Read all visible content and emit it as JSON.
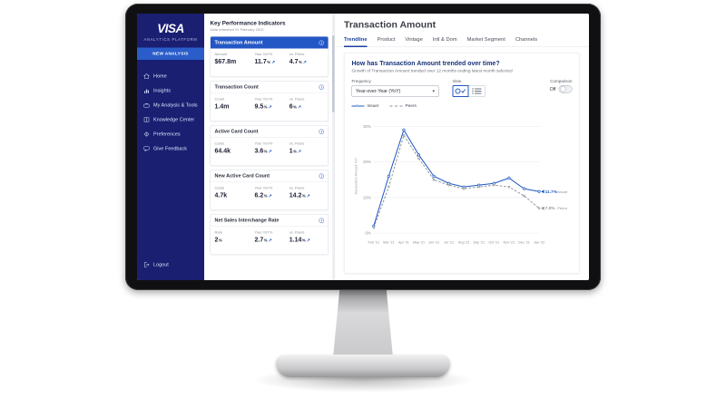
{
  "theme": {
    "brand_navy": "#1a1f71",
    "accent_blue": "#2357c5",
    "issuer_line_color": "#1f57c3",
    "peers_line_color": "#8f959e"
  },
  "sidebar": {
    "logo": "VISA",
    "platform_name": "ANALYTICS PLATFORM",
    "new_analysis_label": "NEW ANALYSIS",
    "items": [
      {
        "label": "Home",
        "icon": "home-icon"
      },
      {
        "label": "Insights",
        "icon": "bar-chart-icon"
      },
      {
        "label": "My Analysis & Tools",
        "icon": "briefcase-icon"
      },
      {
        "label": "Knowledge Center",
        "icon": "book-icon"
      },
      {
        "label": "Preferences",
        "icon": "gear-icon"
      },
      {
        "label": "Give Feedback",
        "icon": "feedback-icon"
      }
    ],
    "logout_label": "Logout"
  },
  "kpi_panel": {
    "title": "Key Performance Indicators",
    "subtitle": "Data refreshed 01 February 2022",
    "cards": [
      {
        "title": "Transaction Amount",
        "selected": true,
        "metrics": [
          {
            "label": "Amount",
            "value": "$67.8m"
          },
          {
            "label": "Your YoY%",
            "value": "11.7",
            "unit": "%",
            "trend": "up"
          },
          {
            "label": "vs. Peers",
            "value": "4.7",
            "unit": "%",
            "trend": "up"
          }
        ]
      },
      {
        "title": "Transaction Count",
        "selected": false,
        "metrics": [
          {
            "label": "Count",
            "value": "1.4m"
          },
          {
            "label": "Your YoY%",
            "value": "9.5",
            "unit": "%",
            "trend": "up"
          },
          {
            "label": "vs. Peers",
            "value": "6",
            "unit": "%",
            "trend": "up"
          }
        ]
      },
      {
        "title": "Active Card Count",
        "selected": false,
        "metrics": [
          {
            "label": "Cards",
            "value": "64.4k"
          },
          {
            "label": "Your YoY%",
            "value": "3.6",
            "unit": "%",
            "trend": "up"
          },
          {
            "label": "vs. Peers",
            "value": "1",
            "unit": "%",
            "trend": "up"
          }
        ]
      },
      {
        "title": "New Active Card Count",
        "selected": false,
        "metrics": [
          {
            "label": "Cards",
            "value": "4.7k"
          },
          {
            "label": "Your YoY%",
            "value": "6.2",
            "unit": "%",
            "trend": "up"
          },
          {
            "label": "vs. Peers",
            "value": "14.2",
            "unit": "%",
            "trend": "up"
          }
        ]
      },
      {
        "title": "Net Sales Interchange Rate",
        "selected": false,
        "metrics": [
          {
            "label": "Rate",
            "value": "2",
            "unit": "%"
          },
          {
            "label": "Your YoY%",
            "value": "2.7",
            "unit": "%",
            "trend": "up"
          },
          {
            "label": "vs. Peers",
            "value": "1.14",
            "unit": "%",
            "trend": "up"
          }
        ]
      }
    ]
  },
  "main": {
    "title": "Transaction Amount",
    "tabs": [
      {
        "label": "Trendline",
        "active": true
      },
      {
        "label": "Product",
        "active": false
      },
      {
        "label": "Vintage",
        "active": false
      },
      {
        "label": "Intl & Dom",
        "active": false
      },
      {
        "label": "Market Segment",
        "active": false
      },
      {
        "label": "Channels",
        "active": false
      }
    ],
    "question": "How has Transaction Amount trended over time?",
    "description": "Growth of Transaction Amount trended over 12 months ending latest month selected",
    "controls": {
      "frequency_label": "Frequency",
      "frequency_value": "Year-over-Year (YoY)",
      "view_label": "View",
      "comparison_label": "Comparison",
      "comparison_state": "Off"
    }
  },
  "chart_data": {
    "type": "line",
    "ylabel": "Transaction Amount YoY",
    "ylim": [
      0,
      32
    ],
    "ytick_values": [
      0,
      10,
      20,
      30
    ],
    "ytick_labels": [
      "0%",
      "10%",
      "20%",
      "30%"
    ],
    "grid": true,
    "legend_position": "top-left",
    "x": [
      "Feb '21",
      "Mar '21",
      "Apr '21",
      "May '21",
      "Jun '21",
      "Jul '21",
      "Aug '21",
      "Sep '21",
      "Oct '21",
      "Nov '21",
      "Dec '21",
      "Jan '22"
    ],
    "series": [
      {
        "name": "Issuer",
        "color": "#1f57c3",
        "dash": "solid",
        "values": [
          2,
          16,
          29,
          22,
          16,
          14,
          13,
          13.5,
          14,
          15.5,
          12.5,
          11.7
        ]
      },
      {
        "name": "Peers",
        "color": "#8f959e",
        "dash": "dashed",
        "values": [
          1.5,
          13,
          27.5,
          21,
          15,
          13.5,
          12.5,
          13,
          13.5,
          13,
          10.5,
          7
        ]
      }
    ],
    "end_annotations": [
      {
        "text": "11.7%",
        "series_label": "Issuer"
      },
      {
        "text": "7.0%",
        "series_label": "Peers"
      }
    ]
  }
}
